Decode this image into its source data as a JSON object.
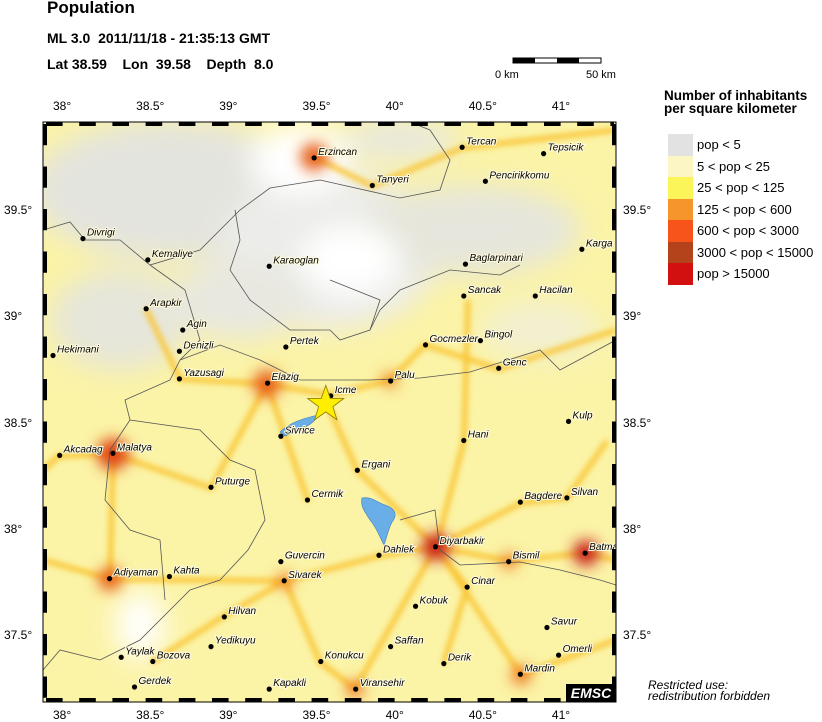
{
  "header": {
    "title": "Population",
    "event_line": "ML 3.0  2011/11/18 - 21:35:13 GMT",
    "location_line": "Lat 38.59    Lon  39.58    Depth  8.0"
  },
  "epicenter": {
    "lat": 38.59,
    "lon": 39.58,
    "color": "#ffee00"
  },
  "scale_bar": {
    "start_label": "0 km",
    "end_label": "50 km"
  },
  "legend": {
    "title_line1": "Number of inhabitants",
    "title_line2": "per square kilometer",
    "items": [
      {
        "label": "pop < 5",
        "color": "#e2e2e2"
      },
      {
        "label": "5 < pop < 25",
        "color": "#fbf6c4"
      },
      {
        "label": "25 < pop < 125",
        "color": "#fbf55a"
      },
      {
        "label": "125 < pop < 600",
        "color": "#f7952d"
      },
      {
        "label": "600 < pop < 3000",
        "color": "#f7541c"
      },
      {
        "label": "3000 < pop < 15000",
        "color": "#b4421a"
      },
      {
        "label": "pop > 15000",
        "color": "#d31010"
      }
    ]
  },
  "axes": {
    "lon_ticks": [
      "38°",
      "38.5°",
      "39°",
      "39.5°",
      "40°",
      "40.5°",
      "41°"
    ],
    "lat_ticks": [
      "39.5°",
      "39°",
      "38.5°",
      "38°",
      "37.5°"
    ],
    "lon_range": [
      37.88,
      41.33
    ],
    "lat_range": [
      37.22,
      39.92
    ]
  },
  "cities": [
    {
      "name": "Erzincan",
      "lon": 39.51,
      "lat": 39.75
    },
    {
      "name": "Tanyeri",
      "lon": 39.86,
      "lat": 39.62
    },
    {
      "name": "Tercan",
      "lon": 40.4,
      "lat": 39.8
    },
    {
      "name": "Tepsicik",
      "lon": 40.89,
      "lat": 39.77
    },
    {
      "name": "Pencirikkomu",
      "lon": 40.54,
      "lat": 39.64
    },
    {
      "name": "Divrigi",
      "lon": 38.12,
      "lat": 39.37
    },
    {
      "name": "Kemaliye",
      "lon": 38.51,
      "lat": 39.27
    },
    {
      "name": "Karaoglan",
      "lon": 39.24,
      "lat": 39.24
    },
    {
      "name": "Baglarpinari",
      "lon": 40.42,
      "lat": 39.25
    },
    {
      "name": "Karga",
      "lon": 41.12,
      "lat": 39.32
    },
    {
      "name": "Sancak",
      "lon": 40.41,
      "lat": 39.1
    },
    {
      "name": "Hacilan",
      "lon": 40.84,
      "lat": 39.1
    },
    {
      "name": "Arapkir",
      "lon": 38.5,
      "lat": 39.04
    },
    {
      "name": "Agin",
      "lon": 38.72,
      "lat": 38.94
    },
    {
      "name": "Denizli",
      "lon": 38.7,
      "lat": 38.84
    },
    {
      "name": "Hekimani",
      "lon": 37.94,
      "lat": 38.82
    },
    {
      "name": "Pertek",
      "lon": 39.34,
      "lat": 38.86
    },
    {
      "name": "Gocmezler",
      "lon": 40.18,
      "lat": 38.87
    },
    {
      "name": "Bingol",
      "lon": 40.51,
      "lat": 38.89
    },
    {
      "name": "Genc",
      "lon": 40.62,
      "lat": 38.76
    },
    {
      "name": "Palu",
      "lon": 39.97,
      "lat": 38.7
    },
    {
      "name": "Icme",
      "lon": 39.61,
      "lat": 38.63
    },
    {
      "name": "Elazig",
      "lon": 39.23,
      "lat": 38.69
    },
    {
      "name": "Yazusagi",
      "lon": 38.7,
      "lat": 38.71
    },
    {
      "name": "Kulp",
      "lon": 41.04,
      "lat": 38.51
    },
    {
      "name": "Hani",
      "lon": 40.41,
      "lat": 38.42
    },
    {
      "name": "Sivrice",
      "lon": 39.31,
      "lat": 38.44
    },
    {
      "name": "Akcadag",
      "lon": 37.98,
      "lat": 38.35
    },
    {
      "name": "Malatya",
      "lon": 38.3,
      "lat": 38.36
    },
    {
      "name": "Ergani",
      "lon": 39.77,
      "lat": 38.28
    },
    {
      "name": "Puturge",
      "lon": 38.89,
      "lat": 38.2
    },
    {
      "name": "Cermik",
      "lon": 39.47,
      "lat": 38.14
    },
    {
      "name": "Bagdere",
      "lon": 40.75,
      "lat": 38.13
    },
    {
      "name": "Silvan",
      "lon": 41.03,
      "lat": 38.15
    },
    {
      "name": "Diyarbakir",
      "lon": 40.24,
      "lat": 37.92
    },
    {
      "name": "Dahlek",
      "lon": 39.9,
      "lat": 37.88
    },
    {
      "name": "Bismil",
      "lon": 40.68,
      "lat": 37.85
    },
    {
      "name": "Batman",
      "lon": 41.14,
      "lat": 37.89
    },
    {
      "name": "Guvercin",
      "lon": 39.31,
      "lat": 37.85
    },
    {
      "name": "Sivarek",
      "lon": 39.33,
      "lat": 37.76
    },
    {
      "name": "Adiyaman",
      "lon": 38.28,
      "lat": 37.77
    },
    {
      "name": "Kahta",
      "lon": 38.64,
      "lat": 37.78
    },
    {
      "name": "Cinar",
      "lon": 40.43,
      "lat": 37.73
    },
    {
      "name": "Kobuk",
      "lon": 40.12,
      "lat": 37.64
    },
    {
      "name": "Hilvan",
      "lon": 38.97,
      "lat": 37.59
    },
    {
      "name": "Savur",
      "lon": 40.91,
      "lat": 37.54
    },
    {
      "name": "Omerli",
      "lon": 40.98,
      "lat": 37.41
    },
    {
      "name": "Saffan",
      "lon": 39.97,
      "lat": 37.45
    },
    {
      "name": "Yedikuyu",
      "lon": 38.89,
      "lat": 37.45
    },
    {
      "name": "Derik",
      "lon": 40.29,
      "lat": 37.37
    },
    {
      "name": "Konukcu",
      "lon": 39.55,
      "lat": 37.38
    },
    {
      "name": "Yaylak",
      "lon": 38.35,
      "lat": 37.4
    },
    {
      "name": "Bozova",
      "lon": 38.54,
      "lat": 37.38
    },
    {
      "name": "Mardin",
      "lon": 40.75,
      "lat": 37.32
    },
    {
      "name": "Gerdek",
      "lon": 38.43,
      "lat": 37.26
    },
    {
      "name": "Kapakli",
      "lon": 39.24,
      "lat": 37.25
    },
    {
      "name": "Viransehir",
      "lon": 39.76,
      "lat": 37.25
    }
  ],
  "logo": "EMSC",
  "notice_line1": "Restricted use:",
  "notice_line2": "redistribution forbidden",
  "colors": {
    "lake": "#6aaee8",
    "border": "#444444",
    "frame": "#000000"
  }
}
